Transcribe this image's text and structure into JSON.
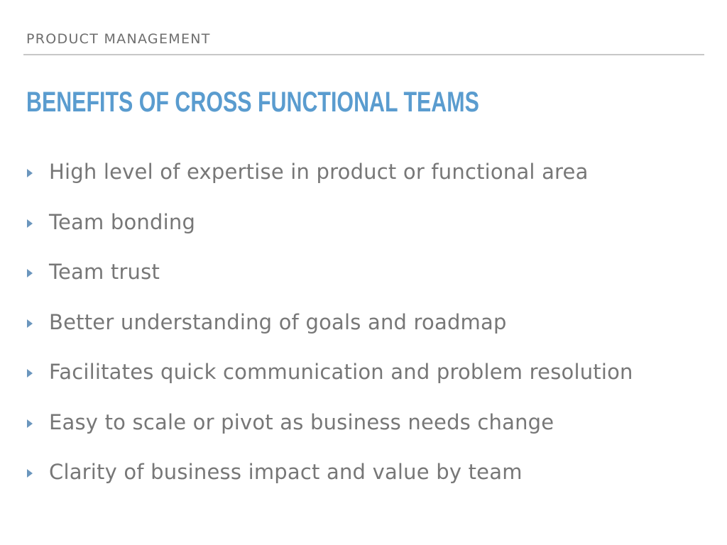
{
  "header": {
    "section": "PRODUCT MANAGEMENT"
  },
  "slide": {
    "title": "BENEFITS OF CROSS FUNCTIONAL TEAMS",
    "bullets": [
      "High level of expertise in product or functional area",
      "Team bonding",
      "Team trust",
      "Better understanding of goals and roadmap",
      "Facilitates quick communication and problem resolution",
      "Easy to scale or pivot as business needs change",
      "Clarity of business impact and value by team"
    ]
  },
  "icons": {
    "bullet": "triangle-right-icon"
  },
  "colors": {
    "title": "#5a9ccf",
    "section_label": "#6e6e6e",
    "body_text": "#777777",
    "bullet_marker": "#6b96bd",
    "rule": "#c7c7c7"
  }
}
